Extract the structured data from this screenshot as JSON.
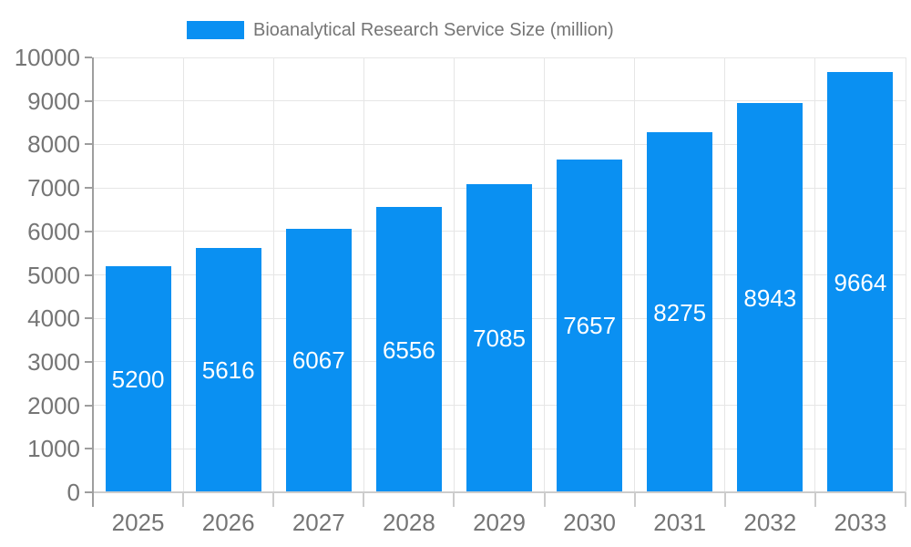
{
  "chart_data": {
    "type": "bar",
    "title": "Bioanalytical Research Service Size (million)",
    "legend": {
      "position": "top",
      "label": "Bioanalytical Research Service Size (million)"
    },
    "categories": [
      "2025",
      "2026",
      "2027",
      "2028",
      "2029",
      "2030",
      "2031",
      "2032",
      "2033"
    ],
    "series": [
      {
        "name": "Bioanalytical Research Service Size (million)",
        "values": [
          5200,
          5616,
          6067,
          6556,
          7085,
          7657,
          8275,
          8943,
          9664
        ]
      }
    ],
    "value_labels": [
      "5200",
      "5616",
      "6067",
      "6556",
      "7085",
      "7657",
      "8275",
      "8943",
      "9664"
    ],
    "xlabel": "",
    "ylabel": "",
    "ylim": [
      0,
      10000
    ],
    "y_tick_step": 1000,
    "y_ticks": [
      "0",
      "1000",
      "2000",
      "3000",
      "4000",
      "5000",
      "6000",
      "7000",
      "8000",
      "9000",
      "10000"
    ],
    "grid": true
  },
  "colors": {
    "bar": "#0A90F2",
    "axis_text": "#757575",
    "legend_text": "#757575",
    "value_label_text": "#ffffff",
    "gridline": "#e6e6e6",
    "y_axis_line": "#9e9e9e",
    "x_axis_line": "#cccccc",
    "background": "#ffffff"
  }
}
